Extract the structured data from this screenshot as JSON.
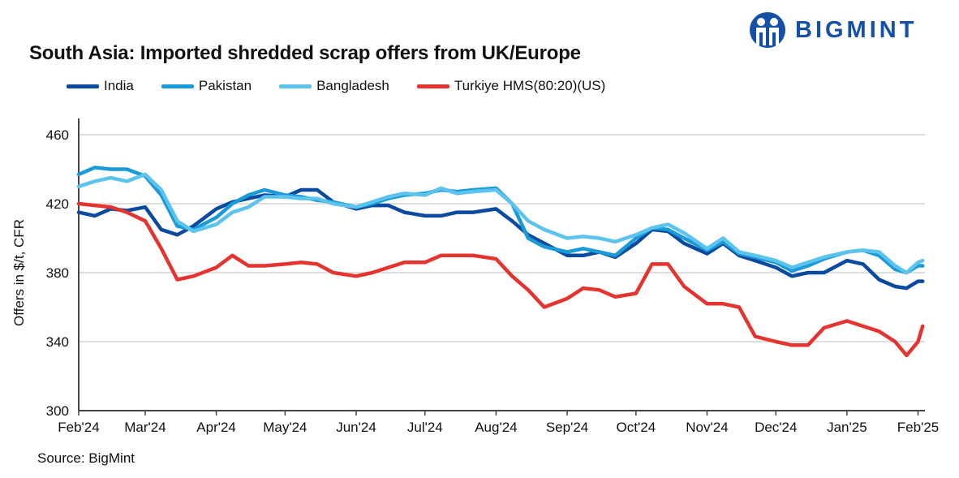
{
  "brand": {
    "name": "BIGMINT",
    "color": "#1550a8"
  },
  "source": "Source: BigMint",
  "chart_data": {
    "type": "line",
    "title": "South Asia: Imported shredded scrap offers from UK/Europe",
    "xlabel": "",
    "ylabel": "Offers in $/t, CFR",
    "ylim": [
      300,
      460
    ],
    "yticks": [
      300,
      340,
      380,
      420,
      460
    ],
    "xlim": [
      "2024-02-01",
      "2025-02-04"
    ],
    "xticks": [
      {
        "date": "2024-02-01",
        "label": "Feb'24"
      },
      {
        "date": "2024-03-01",
        "label": "Mar'24"
      },
      {
        "date": "2024-04-01",
        "label": "Apr'24"
      },
      {
        "date": "2024-05-01",
        "label": "May'24"
      },
      {
        "date": "2024-06-01",
        "label": "Jun'24"
      },
      {
        "date": "2024-07-01",
        "label": "Jul'24"
      },
      {
        "date": "2024-08-01",
        "label": "Aug'24"
      },
      {
        "date": "2024-09-01",
        "label": "Sep'24"
      },
      {
        "date": "2024-10-01",
        "label": "Oct'24"
      },
      {
        "date": "2024-11-01",
        "label": "Nov'24"
      },
      {
        "date": "2024-12-01",
        "label": "Dec'24"
      },
      {
        "date": "2025-01-01",
        "label": "Jan'25"
      },
      {
        "date": "2025-02-01",
        "label": "Feb'25"
      }
    ],
    "grid": "horizontal",
    "legend": "top",
    "x": [
      "2024-02-01",
      "2024-02-08",
      "2024-02-15",
      "2024-02-22",
      "2024-03-01",
      "2024-03-08",
      "2024-03-15",
      "2024-03-22",
      "2024-04-01",
      "2024-04-08",
      "2024-04-15",
      "2024-04-22",
      "2024-05-01",
      "2024-05-08",
      "2024-05-15",
      "2024-05-22",
      "2024-06-01",
      "2024-06-08",
      "2024-06-15",
      "2024-06-22",
      "2024-07-01",
      "2024-07-08",
      "2024-07-15",
      "2024-07-22",
      "2024-08-01",
      "2024-08-08",
      "2024-08-15",
      "2024-08-22",
      "2024-09-01",
      "2024-09-08",
      "2024-09-15",
      "2024-09-22",
      "2024-10-01",
      "2024-10-08",
      "2024-10-15",
      "2024-10-22",
      "2024-11-01",
      "2024-11-08",
      "2024-11-15",
      "2024-11-22",
      "2024-12-01",
      "2024-12-08",
      "2024-12-15",
      "2024-12-22",
      "2025-01-01",
      "2025-01-08",
      "2025-01-15",
      "2025-01-22",
      "2025-01-27",
      "2025-02-01",
      "2025-02-03"
    ],
    "series": [
      {
        "name": "India",
        "color": "#0b4a9e",
        "values": [
          415,
          413,
          417,
          416,
          418,
          405,
          402,
          407,
          417,
          421,
          423,
          425,
          424,
          428,
          428,
          421,
          417,
          419,
          419,
          415,
          413,
          413,
          415,
          415,
          417,
          410,
          402,
          397,
          390,
          390,
          392,
          389,
          397,
          405,
          404,
          397,
          391,
          397,
          390,
          387,
          383,
          378,
          380,
          380,
          387,
          385,
          376,
          372,
          371,
          375,
          375
        ]
      },
      {
        "name": "Pakistan",
        "color": "#1a9ad6",
        "values": [
          437,
          441,
          440,
          440,
          436,
          425,
          407,
          405,
          412,
          420,
          425,
          428,
          425,
          424,
          422,
          421,
          418,
          420,
          423,
          425,
          426,
          428,
          427,
          428,
          429,
          420,
          400,
          395,
          392,
          394,
          392,
          390,
          400,
          406,
          405,
          400,
          393,
          398,
          391,
          389,
          386,
          381,
          384,
          388,
          392,
          393,
          390,
          382,
          380,
          384,
          384
        ]
      },
      {
        "name": "Bangladesh",
        "color": "#5cc3ee",
        "values": [
          430,
          433,
          435,
          433,
          437,
          428,
          410,
          404,
          408,
          415,
          418,
          424,
          424,
          423,
          423,
          420,
          418,
          421,
          424,
          426,
          425,
          429,
          426,
          427,
          428,
          420,
          410,
          405,
          400,
          401,
          400,
          398,
          402,
          406,
          408,
          403,
          394,
          400,
          392,
          390,
          387,
          383,
          386,
          389,
          392,
          393,
          392,
          384,
          380,
          386,
          387
        ]
      },
      {
        "name": "Turkiye HMS(80:20)(US)",
        "color": "#e5342f",
        "values": [
          420,
          419,
          418,
          415,
          410,
          394,
          376,
          378,
          383,
          390,
          384,
          384,
          385,
          386,
          385,
          380,
          378,
          380,
          383,
          386,
          386,
          390,
          390,
          390,
          388,
          378,
          370,
          360,
          365,
          371,
          370,
          366,
          368,
          385,
          385,
          372,
          362,
          362,
          360,
          343,
          340,
          338,
          338,
          348,
          352,
          349,
          346,
          340,
          332,
          340,
          349
        ]
      }
    ]
  }
}
